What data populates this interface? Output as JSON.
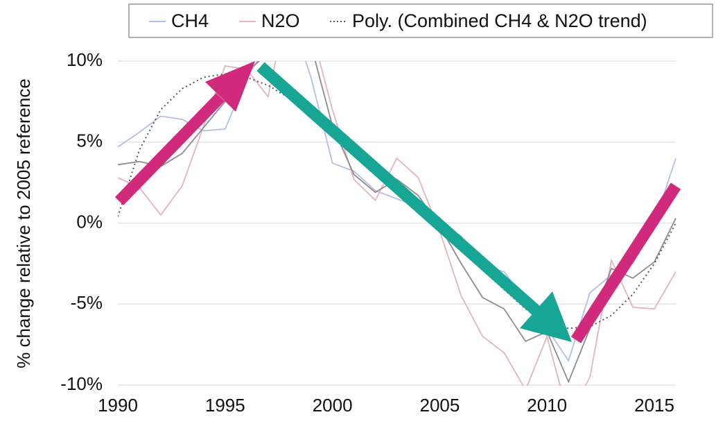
{
  "chart_data": {
    "type": "line",
    "y_label": "% change relative to 2005 reference",
    "x": [
      1990,
      1991,
      1992,
      1993,
      1994,
      1995,
      1996,
      1997,
      1998,
      1999,
      2000,
      2001,
      2002,
      2003,
      2004,
      2005,
      2006,
      2007,
      2008,
      2009,
      2010,
      2011,
      2012,
      2013,
      2014,
      2015,
      2016
    ],
    "series": [
      {
        "name": "CH4",
        "color": "#b4bce8",
        "style": "solid",
        "values": [
          4.7,
          5.6,
          6.6,
          6.4,
          5.7,
          5.8,
          9.0,
          11,
          13,
          9,
          3.7,
          3.2,
          2.0,
          1.5,
          1.0,
          0,
          -0.8,
          -2.7,
          -3.0,
          -4.8,
          -6.5,
          -8.5,
          -4.3,
          -3.2,
          -2.5,
          0,
          4.0
        ]
      },
      {
        "name": "N2O",
        "color": "#e2b4bc",
        "style": "solid",
        "values": [
          2.8,
          2.2,
          0.5,
          2.3,
          6.0,
          9.7,
          9.5,
          7.8,
          14,
          12,
          7,
          2.7,
          1.4,
          4.0,
          2.8,
          -0.5,
          -4.5,
          -7,
          -8,
          -10.3,
          -7,
          -12,
          -9.5,
          -2.3,
          -5.2,
          -5.3,
          -3.0
        ]
      },
      {
        "color": "#8c8c8c",
        "style": "solid",
        "values": [
          3.6,
          3.8,
          3.5,
          4.3,
          5.9,
          7.5,
          9.3,
          10.5,
          13,
          11,
          6,
          3.0,
          1.9,
          2.7,
          1.7,
          -0.2,
          -2.5,
          -4.6,
          -5.3,
          -7.3,
          -6.7,
          -9.8,
          -6.5,
          -2.8,
          -3.4,
          -2.4,
          0.3
        ]
      },
      {
        "name": "Poly. (Combined CH4 & N2O trend)",
        "color": "#555555",
        "style": "dotted",
        "values": [
          0.4,
          4.5,
          7,
          8.3,
          9.0,
          9.2,
          9.0,
          8.5,
          7.7,
          6.8,
          5.7,
          4.5,
          3.3,
          2.1,
          1.0,
          -0.3,
          -1.6,
          -2.9,
          -4.1,
          -5.3,
          -6.1,
          -6.5,
          -6.4,
          -5.7,
          -4.4,
          -2.5,
          0
        ]
      }
    ],
    "xlim": [
      1990,
      2016
    ],
    "xticks": [
      1990,
      1995,
      2000,
      2005,
      2010,
      2015
    ],
    "ylim": [
      -10,
      10
    ],
    "yticks": [
      {
        "value": -10,
        "label": "-10%"
      },
      {
        "value": -5,
        "label": "-5%"
      },
      {
        "value": 0,
        "label": "0%"
      },
      {
        "value": 5,
        "label": "5%"
      },
      {
        "value": 10,
        "label": "10%"
      }
    ],
    "grid": true,
    "legend": "top"
  }
}
